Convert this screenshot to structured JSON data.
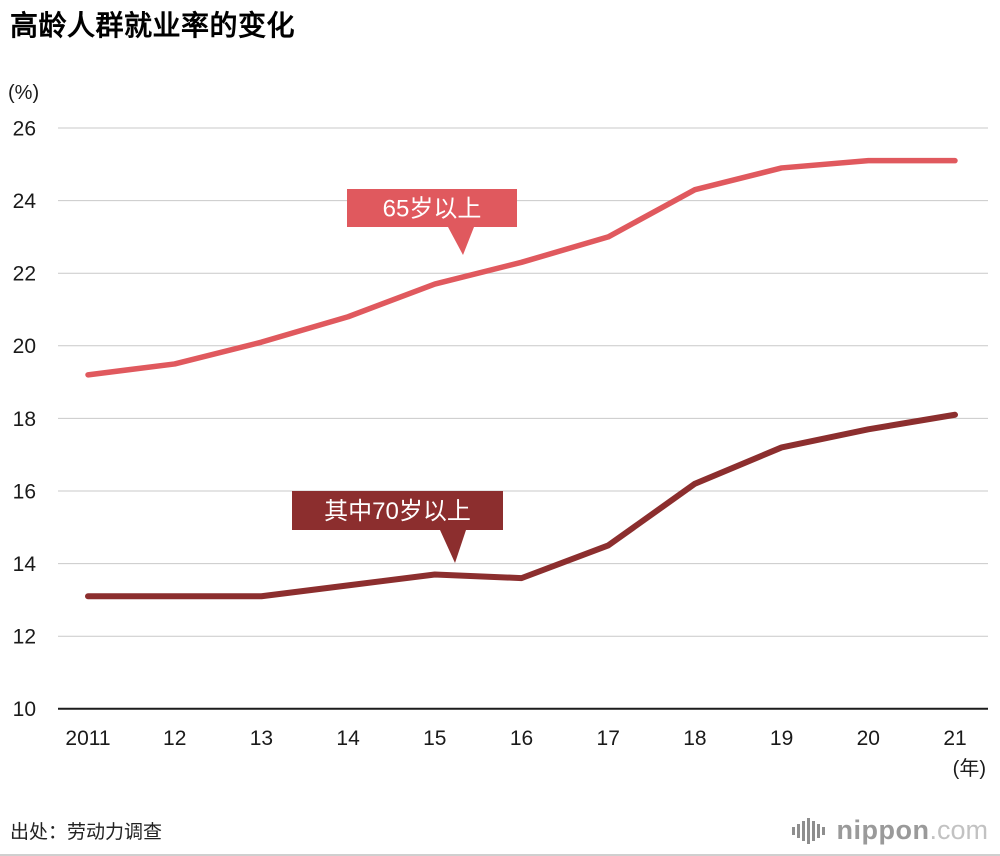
{
  "title": "高龄人群就业率的变化",
  "y_unit": "(%)",
  "x_unit": "(年)",
  "source": "出处：劳动力调查",
  "logo": {
    "icon": "soundwave-bars-icon",
    "name": "nippon",
    "tld": ".com"
  },
  "colors": {
    "series_65plus": "#e0595e",
    "series_70plus": "#8c2e2e",
    "grid": "#c9c9c9",
    "axis": "#1c1c1c"
  },
  "chart_data": {
    "type": "line",
    "x": [
      "2011",
      "12",
      "13",
      "14",
      "15",
      "16",
      "17",
      "18",
      "19",
      "20",
      "21"
    ],
    "ylim": [
      10,
      26
    ],
    "yticks": [
      10,
      12,
      14,
      16,
      18,
      20,
      22,
      24,
      26
    ],
    "grid": true,
    "legend_position": "inline-callouts",
    "series": [
      {
        "name": "65岁以上",
        "color": "#e0595e",
        "values": [
          19.2,
          19.5,
          20.1,
          20.8,
          21.7,
          22.3,
          23.0,
          24.3,
          24.9,
          25.1,
          25.1
        ]
      },
      {
        "name": "其中70岁以上",
        "color": "#8c2e2e",
        "values": [
          13.1,
          13.1,
          13.1,
          13.4,
          13.7,
          13.6,
          14.5,
          16.2,
          17.2,
          17.7,
          18.1
        ]
      }
    ],
    "annotations": [
      {
        "text": "65岁以上",
        "series": 0
      },
      {
        "text": "其中70岁以上",
        "series": 1
      }
    ]
  }
}
